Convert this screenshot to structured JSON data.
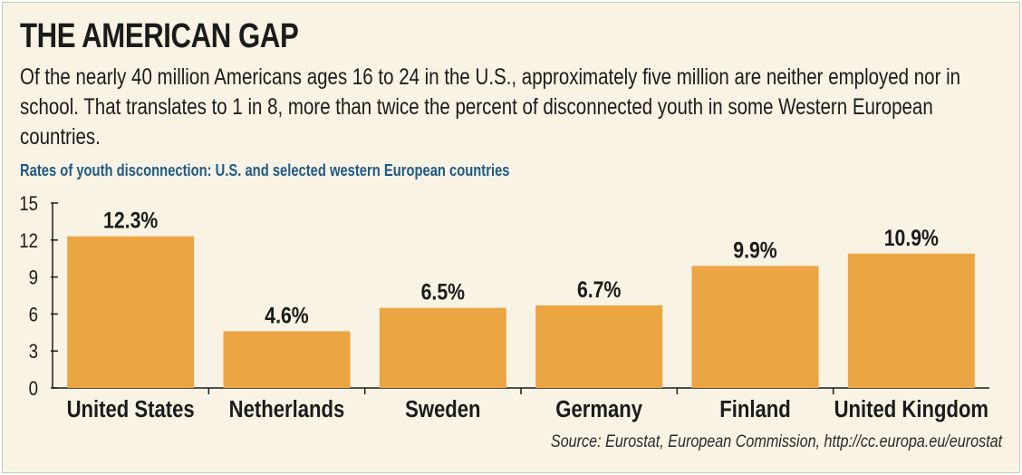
{
  "header": {
    "title": "THE AMERICAN GAP",
    "description": "Of the nearly 40 million Americans ages 16 to 24 in the U.S., approximately five million are neither employed nor in school. That translates to 1 in 8, more than twice the percent of disconnected youth in some Western European countries.",
    "subtitle": "Rates of youth disconnection: U.S. and selected western European countries"
  },
  "footer": {
    "source": "Source: Eurostat, European Commission, http://cc.europa.eu/eurostat"
  },
  "colors": {
    "bar": "#eba543",
    "background": "#f8f3e4",
    "subtitle": "#1f5a86"
  },
  "chart_data": {
    "type": "bar",
    "title": "Rates of youth disconnection: U.S. and selected western European countries",
    "categories": [
      "United States",
      "Netherlands",
      "Sweden",
      "Germany",
      "Finland",
      "United Kingdom"
    ],
    "values": [
      12.3,
      4.6,
      6.5,
      6.7,
      9.9,
      10.9
    ],
    "value_labels": [
      "12.3%",
      "4.6%",
      "6.5%",
      "6.7%",
      "9.9%",
      "10.9%"
    ],
    "yticks": [
      0,
      3,
      6,
      9,
      12,
      15
    ],
    "ylim": [
      0,
      15
    ],
    "xlabel": "",
    "ylabel": "",
    "grid": false,
    "legend": "none"
  }
}
